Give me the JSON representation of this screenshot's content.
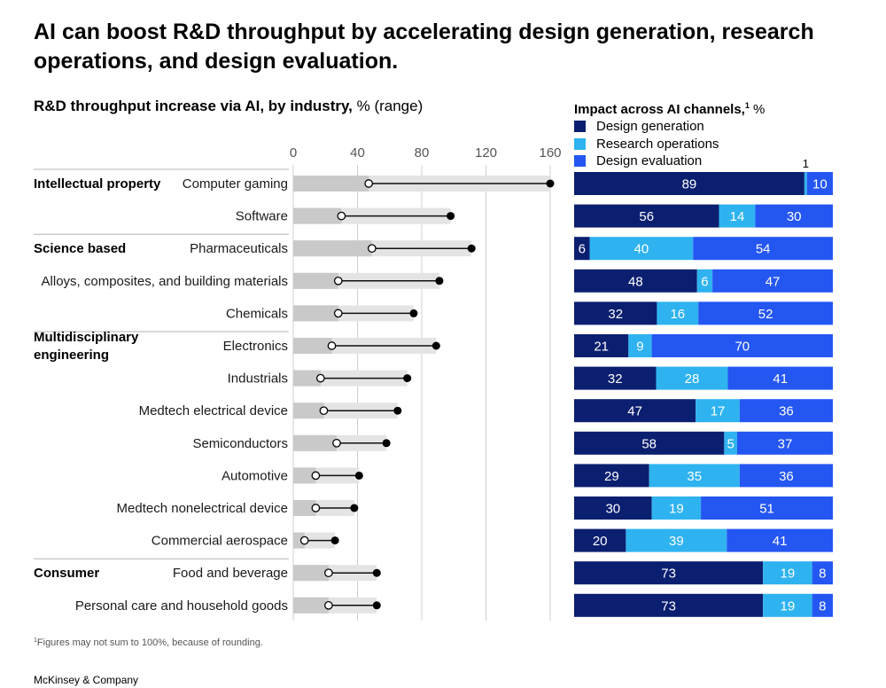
{
  "title": "AI can boost R&D throughput by accelerating design generation, research operations, and design evaluation.",
  "left_heading": {
    "bold": "R&D throughput increase via AI, by industry,",
    "light": " % (range)"
  },
  "right_heading": {
    "bold": "Impact across AI channels,",
    "sup": "1",
    "light": " %"
  },
  "legend": [
    {
      "label": "Design generation",
      "color": "#0b1f70"
    },
    {
      "label": "Research operations",
      "color": "#2eb3f0"
    },
    {
      "label": "Design evaluation",
      "color": "#2456f2"
    }
  ],
  "footnote": {
    "sup": "1",
    "text": "Figures may not sum to 100%, because of rounding."
  },
  "brand": "McKinsey & Company",
  "chart_data": [
    {
      "type": "range",
      "xlim": [
        0,
        160
      ],
      "ticks": [
        "0",
        "40",
        "80",
        "120",
        "160"
      ],
      "groups": [
        {
          "label": "Intellectual property",
          "rows": [
            0,
            1
          ]
        },
        {
          "label": "Science based",
          "rows": [
            2,
            3,
            4
          ]
        },
        {
          "label": "Multidisciplinary engineering",
          "rows": [
            5,
            6,
            7,
            8,
            9,
            10,
            11
          ]
        },
        {
          "label": "Consumer",
          "rows": [
            12,
            13
          ]
        }
      ],
      "categories": [
        "Computer gaming",
        "Software",
        "Pharmaceuticals",
        "Alloys, composites, and building materials",
        "Chemicals",
        "Electronics",
        "Industrials",
        "Medtech electrical device",
        "Semiconductors",
        "Automotive",
        "Medtech nonelectrical device",
        "Commercial aerospace",
        "Food and beverage",
        "Personal care and household goods"
      ],
      "low": [
        47,
        30,
        49,
        28,
        28,
        24,
        17,
        19,
        27,
        14,
        14,
        7,
        22,
        22
      ],
      "high": [
        160,
        98,
        111,
        91,
        75,
        89,
        71,
        65,
        58,
        41,
        38,
        26,
        52,
        52
      ]
    },
    {
      "type": "stacked_bar_100",
      "categories": [
        "Computer gaming",
        "Software",
        "Pharmaceuticals",
        "Alloys, composites, and building materials",
        "Chemicals",
        "Electronics",
        "Industrials",
        "Medtech electrical device",
        "Semiconductors",
        "Automotive",
        "Medtech nonelectrical device",
        "Commercial aerospace",
        "Food and beverage",
        "Personal care and household goods"
      ],
      "series": [
        {
          "name": "Design generation",
          "color": "#0b1f70",
          "values": [
            89,
            56,
            6,
            48,
            32,
            21,
            32,
            47,
            58,
            29,
            30,
            20,
            73,
            73
          ]
        },
        {
          "name": "Research operations",
          "color": "#2eb3f0",
          "values": [
            1,
            14,
            40,
            6,
            16,
            9,
            28,
            17,
            5,
            35,
            19,
            39,
            19,
            19
          ]
        },
        {
          "name": "Design evaluation",
          "color": "#2456f2",
          "values": [
            10,
            30,
            54,
            47,
            52,
            70,
            41,
            36,
            37,
            36,
            51,
            41,
            8,
            8
          ]
        }
      ]
    }
  ]
}
